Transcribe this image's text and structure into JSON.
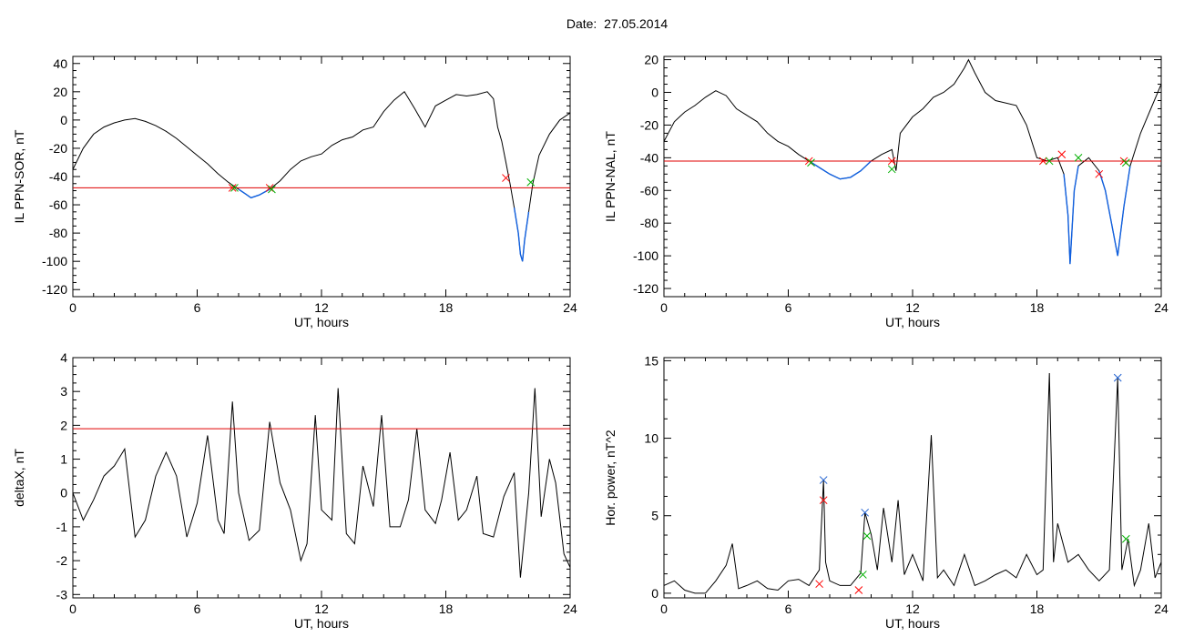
{
  "header": {
    "date_label": "Date:",
    "date_value": "27.05.2014"
  },
  "chart_data": [
    {
      "type": "line",
      "ylabel": "IL PPN-SOR, nT",
      "xlabel": "UT, hours",
      "xlim": [
        0,
        24
      ],
      "xticks": [
        0,
        6,
        12,
        18,
        24
      ],
      "ylim": [
        -125,
        45
      ],
      "yticks": [
        -120,
        -100,
        -80,
        -60,
        -40,
        -20,
        0,
        20,
        40
      ],
      "threshold": -48,
      "series": [
        {
          "values": [
            [
              0,
              -35
            ],
            [
              0.5,
              -20
            ],
            [
              1,
              -10
            ],
            [
              1.5,
              -5
            ],
            [
              2,
              -2
            ],
            [
              2.5,
              0
            ],
            [
              3,
              1
            ],
            [
              3.5,
              -1
            ],
            [
              4,
              -4
            ],
            [
              4.5,
              -8
            ],
            [
              5,
              -13
            ],
            [
              5.5,
              -19
            ],
            [
              6,
              -25
            ],
            [
              6.5,
              -31
            ],
            [
              7,
              -38
            ],
            [
              7.5,
              -44
            ],
            [
              7.8,
              -47
            ],
            [
              8,
              -49
            ],
            [
              8.3,
              -52
            ],
            [
              8.6,
              -55
            ],
            [
              9,
              -53
            ],
            [
              9.5,
              -49
            ],
            [
              10,
              -43
            ],
            [
              10.5,
              -35
            ],
            [
              11,
              -29
            ],
            [
              11.5,
              -26
            ],
            [
              12,
              -24
            ],
            [
              12.5,
              -18
            ],
            [
              13,
              -14
            ],
            [
              13.5,
              -12
            ],
            [
              14,
              -7
            ],
            [
              14.5,
              -5
            ],
            [
              15,
              6
            ],
            [
              15.5,
              14
            ],
            [
              16,
              20
            ],
            [
              16.5,
              8
            ],
            [
              17,
              -5
            ],
            [
              17.5,
              10
            ],
            [
              18,
              14
            ],
            [
              18.5,
              18
            ],
            [
              19,
              17
            ],
            [
              19.5,
              18
            ],
            [
              20,
              20
            ],
            [
              20.3,
              15
            ],
            [
              20.5,
              -5
            ],
            [
              20.7,
              -15
            ],
            [
              20.9,
              -30
            ],
            [
              21.1,
              -45
            ],
            [
              21.3,
              -62
            ],
            [
              21.5,
              -80
            ],
            [
              21.6,
              -95
            ],
            [
              21.7,
              -100
            ],
            [
              21.8,
              -85
            ],
            [
              22,
              -65
            ],
            [
              22.2,
              -45
            ],
            [
              22.5,
              -25
            ],
            [
              23,
              -10
            ],
            [
              23.5,
              0
            ],
            [
              24,
              5
            ]
          ]
        }
      ],
      "markers": [
        {
          "x": 7.7,
          "y": -48,
          "color": "#ff0000"
        },
        {
          "x": 7.8,
          "y": -48,
          "color": "#00b000"
        },
        {
          "x": 9.5,
          "y": -48,
          "color": "#ff0000"
        },
        {
          "x": 9.6,
          "y": -49,
          "color": "#00b000"
        },
        {
          "x": 20.9,
          "y": -41,
          "color": "#ff0000"
        },
        {
          "x": 22.1,
          "y": -44,
          "color": "#00b000"
        }
      ]
    },
    {
      "type": "line",
      "ylabel": "IL PPN-NAL, nT",
      "xlabel": "UT, hours",
      "xlim": [
        0,
        24
      ],
      "xticks": [
        0,
        6,
        12,
        18,
        24
      ],
      "ylim": [
        -125,
        22
      ],
      "yticks": [
        -120,
        -100,
        -80,
        -60,
        -40,
        -20,
        0,
        20
      ],
      "threshold": -42,
      "series": [
        {
          "values": [
            [
              0,
              -30
            ],
            [
              0.5,
              -18
            ],
            [
              1,
              -12
            ],
            [
              1.5,
              -8
            ],
            [
              2,
              -3
            ],
            [
              2.5,
              1
            ],
            [
              3,
              -2
            ],
            [
              3.5,
              -10
            ],
            [
              4,
              -14
            ],
            [
              4.5,
              -18
            ],
            [
              5,
              -25
            ],
            [
              5.5,
              -30
            ],
            [
              6,
              -33
            ],
            [
              6.5,
              -38
            ],
            [
              7,
              -42
            ],
            [
              7.5,
              -46
            ],
            [
              8,
              -50
            ],
            [
              8.5,
              -53
            ],
            [
              9,
              -52
            ],
            [
              9.5,
              -48
            ],
            [
              10,
              -42
            ],
            [
              10.5,
              -38
            ],
            [
              11,
              -35
            ],
            [
              11.2,
              -48
            ],
            [
              11.4,
              -25
            ],
            [
              12,
              -15
            ],
            [
              12.5,
              -10
            ],
            [
              13,
              -3
            ],
            [
              13.5,
              0
            ],
            [
              14,
              5
            ],
            [
              14.5,
              15
            ],
            [
              14.7,
              20
            ],
            [
              15,
              12
            ],
            [
              15.5,
              0
            ],
            [
              16,
              -5
            ],
            [
              17,
              -8
            ],
            [
              17.5,
              -20
            ],
            [
              18,
              -40
            ],
            [
              18.5,
              -42
            ],
            [
              19,
              -40
            ],
            [
              19.3,
              -50
            ],
            [
              19.5,
              -75
            ],
            [
              19.6,
              -105
            ],
            [
              19.8,
              -60
            ],
            [
              20,
              -45
            ],
            [
              20.5,
              -40
            ],
            [
              21,
              -48
            ],
            [
              21.3,
              -60
            ],
            [
              21.6,
              -80
            ],
            [
              21.9,
              -100
            ],
            [
              22.2,
              -70
            ],
            [
              22.5,
              -45
            ],
            [
              23,
              -25
            ],
            [
              23.5,
              -10
            ],
            [
              24,
              5
            ]
          ]
        }
      ],
      "markers": [
        {
          "x": 7.0,
          "y": -42,
          "color": "#ff0000"
        },
        {
          "x": 7.1,
          "y": -43,
          "color": "#00b000"
        },
        {
          "x": 11.0,
          "y": -42,
          "color": "#ff0000"
        },
        {
          "x": 11.0,
          "y": -47,
          "color": "#00b000"
        },
        {
          "x": 18.3,
          "y": -42,
          "color": "#ff0000"
        },
        {
          "x": 18.6,
          "y": -42,
          "color": "#00b000"
        },
        {
          "x": 19.2,
          "y": -38,
          "color": "#ff0000"
        },
        {
          "x": 20.0,
          "y": -40,
          "color": "#00b000"
        },
        {
          "x": 21.0,
          "y": -50,
          "color": "#ff0000"
        },
        {
          "x": 22.2,
          "y": -42,
          "color": "#ff0000"
        },
        {
          "x": 22.3,
          "y": -43,
          "color": "#00b000"
        }
      ]
    },
    {
      "type": "line",
      "ylabel": "deltaX, nT",
      "xlabel": "UT, hours",
      "xlim": [
        0,
        24
      ],
      "xticks": [
        0,
        6,
        12,
        18,
        24
      ],
      "ylim": [
        -3.1,
        4.0
      ],
      "yticks": [
        -3,
        -2,
        -1,
        0,
        1,
        2,
        3,
        4
      ],
      "threshold": 1.9,
      "series": [
        {
          "values": [
            [
              0,
              0
            ],
            [
              0.5,
              -0.8
            ],
            [
              1,
              -0.2
            ],
            [
              1.5,
              0.5
            ],
            [
              2,
              0.8
            ],
            [
              2.5,
              1.3
            ],
            [
              3,
              -1.3
            ],
            [
              3.5,
              -0.8
            ],
            [
              4,
              0.5
            ],
            [
              4.5,
              1.2
            ],
            [
              5,
              0.5
            ],
            [
              5.5,
              -1.3
            ],
            [
              6,
              -0.3
            ],
            [
              6.5,
              1.7
            ],
            [
              7,
              -0.8
            ],
            [
              7.3,
              -1.2
            ],
            [
              7.7,
              2.7
            ],
            [
              8,
              0
            ],
            [
              8.5,
              -1.4
            ],
            [
              9,
              -1.1
            ],
            [
              9.5,
              2.1
            ],
            [
              10,
              0.3
            ],
            [
              10.5,
              -0.5
            ],
            [
              11,
              -2.0
            ],
            [
              11.3,
              -1.5
            ],
            [
              11.7,
              2.3
            ],
            [
              12,
              -0.5
            ],
            [
              12.5,
              -0.8
            ],
            [
              12.8,
              3.1
            ],
            [
              13.2,
              -1.2
            ],
            [
              13.6,
              -1.5
            ],
            [
              14,
              0.8
            ],
            [
              14.5,
              -0.4
            ],
            [
              14.9,
              2.3
            ],
            [
              15.3,
              -1.0
            ],
            [
              15.8,
              -1.0
            ],
            [
              16.2,
              -0.2
            ],
            [
              16.6,
              1.9
            ],
            [
              17,
              -0.5
            ],
            [
              17.5,
              -0.9
            ],
            [
              17.8,
              -0.2
            ],
            [
              18.2,
              1.2
            ],
            [
              18.6,
              -0.8
            ],
            [
              19,
              -0.5
            ],
            [
              19.5,
              0.5
            ],
            [
              19.8,
              -1.2
            ],
            [
              20.3,
              -1.3
            ],
            [
              20.8,
              -0.1
            ],
            [
              21.3,
              0.6
            ],
            [
              21.6,
              -2.5
            ],
            [
              22,
              0
            ],
            [
              22.3,
              3.1
            ],
            [
              22.6,
              -0.7
            ],
            [
              23,
              1.0
            ],
            [
              23.3,
              0.3
            ],
            [
              23.7,
              -1.8
            ],
            [
              24,
              -2.2
            ]
          ]
        }
      ],
      "markers": []
    },
    {
      "type": "line",
      "ylabel": "Hor. power, nT^2",
      "xlabel": "UT, hours",
      "xlim": [
        0,
        24
      ],
      "xticks": [
        0,
        6,
        12,
        18,
        24
      ],
      "ylim": [
        -0.3,
        15.2
      ],
      "yticks": [
        0,
        5,
        10,
        15
      ],
      "threshold": null,
      "series": [
        {
          "values": [
            [
              0,
              0.5
            ],
            [
              0.5,
              0.8
            ],
            [
              1,
              0.2
            ],
            [
              1.5,
              0
            ],
            [
              2,
              0
            ],
            [
              2.5,
              0.8
            ],
            [
              3,
              1.8
            ],
            [
              3.3,
              3.2
            ],
            [
              3.6,
              0.3
            ],
            [
              4,
              0.5
            ],
            [
              4.5,
              0.8
            ],
            [
              5,
              0.3
            ],
            [
              5.5,
              0.2
            ],
            [
              6,
              0.8
            ],
            [
              6.5,
              0.9
            ],
            [
              7,
              0.5
            ],
            [
              7.5,
              1.5
            ],
            [
              7.7,
              7.3
            ],
            [
              7.8,
              2
            ],
            [
              8,
              0.8
            ],
            [
              8.5,
              0.5
            ],
            [
              9,
              0.5
            ],
            [
              9.5,
              1.3
            ],
            [
              9.7,
              5.2
            ],
            [
              10,
              3.8
            ],
            [
              10.3,
              1.5
            ],
            [
              10.6,
              5.5
            ],
            [
              11,
              2
            ],
            [
              11.3,
              6.0
            ],
            [
              11.6,
              1.2
            ],
            [
              12,
              2.5
            ],
            [
              12.5,
              0.8
            ],
            [
              12.9,
              10.2
            ],
            [
              13.2,
              1.0
            ],
            [
              13.5,
              1.5
            ],
            [
              14,
              0.5
            ],
            [
              14.5,
              2.5
            ],
            [
              15,
              0.5
            ],
            [
              15.5,
              0.8
            ],
            [
              16,
              1.2
            ],
            [
              16.5,
              1.5
            ],
            [
              17,
              1.0
            ],
            [
              17.5,
              2.5
            ],
            [
              18,
              1.2
            ],
            [
              18.3,
              1.5
            ],
            [
              18.6,
              14.2
            ],
            [
              18.8,
              2.0
            ],
            [
              19,
              4.5
            ],
            [
              19.5,
              2.0
            ],
            [
              20,
              2.5
            ],
            [
              20.5,
              1.5
            ],
            [
              21,
              0.8
            ],
            [
              21.5,
              1.5
            ],
            [
              21.9,
              13.9
            ],
            [
              22.1,
              1.5
            ],
            [
              22.4,
              3.5
            ],
            [
              22.7,
              0.5
            ],
            [
              23,
              1.5
            ],
            [
              23.4,
              4.5
            ],
            [
              23.7,
              1.0
            ],
            [
              24,
              2.0
            ]
          ]
        }
      ],
      "markers": [
        {
          "x": 7.7,
          "y": 7.3,
          "color": "#2060d0"
        },
        {
          "x": 7.7,
          "y": 6.0,
          "color": "#ff0000"
        },
        {
          "x": 7.5,
          "y": 0.6,
          "color": "#ff0000"
        },
        {
          "x": 9.7,
          "y": 5.2,
          "color": "#2060d0"
        },
        {
          "x": 9.8,
          "y": 3.7,
          "color": "#00b000"
        },
        {
          "x": 9.6,
          "y": 1.2,
          "color": "#00b000"
        },
        {
          "x": 9.4,
          "y": 0.2,
          "color": "#ff0000"
        },
        {
          "x": 21.9,
          "y": 13.9,
          "color": "#2060d0"
        },
        {
          "x": 22.3,
          "y": 3.5,
          "color": "#00b000"
        }
      ]
    }
  ]
}
